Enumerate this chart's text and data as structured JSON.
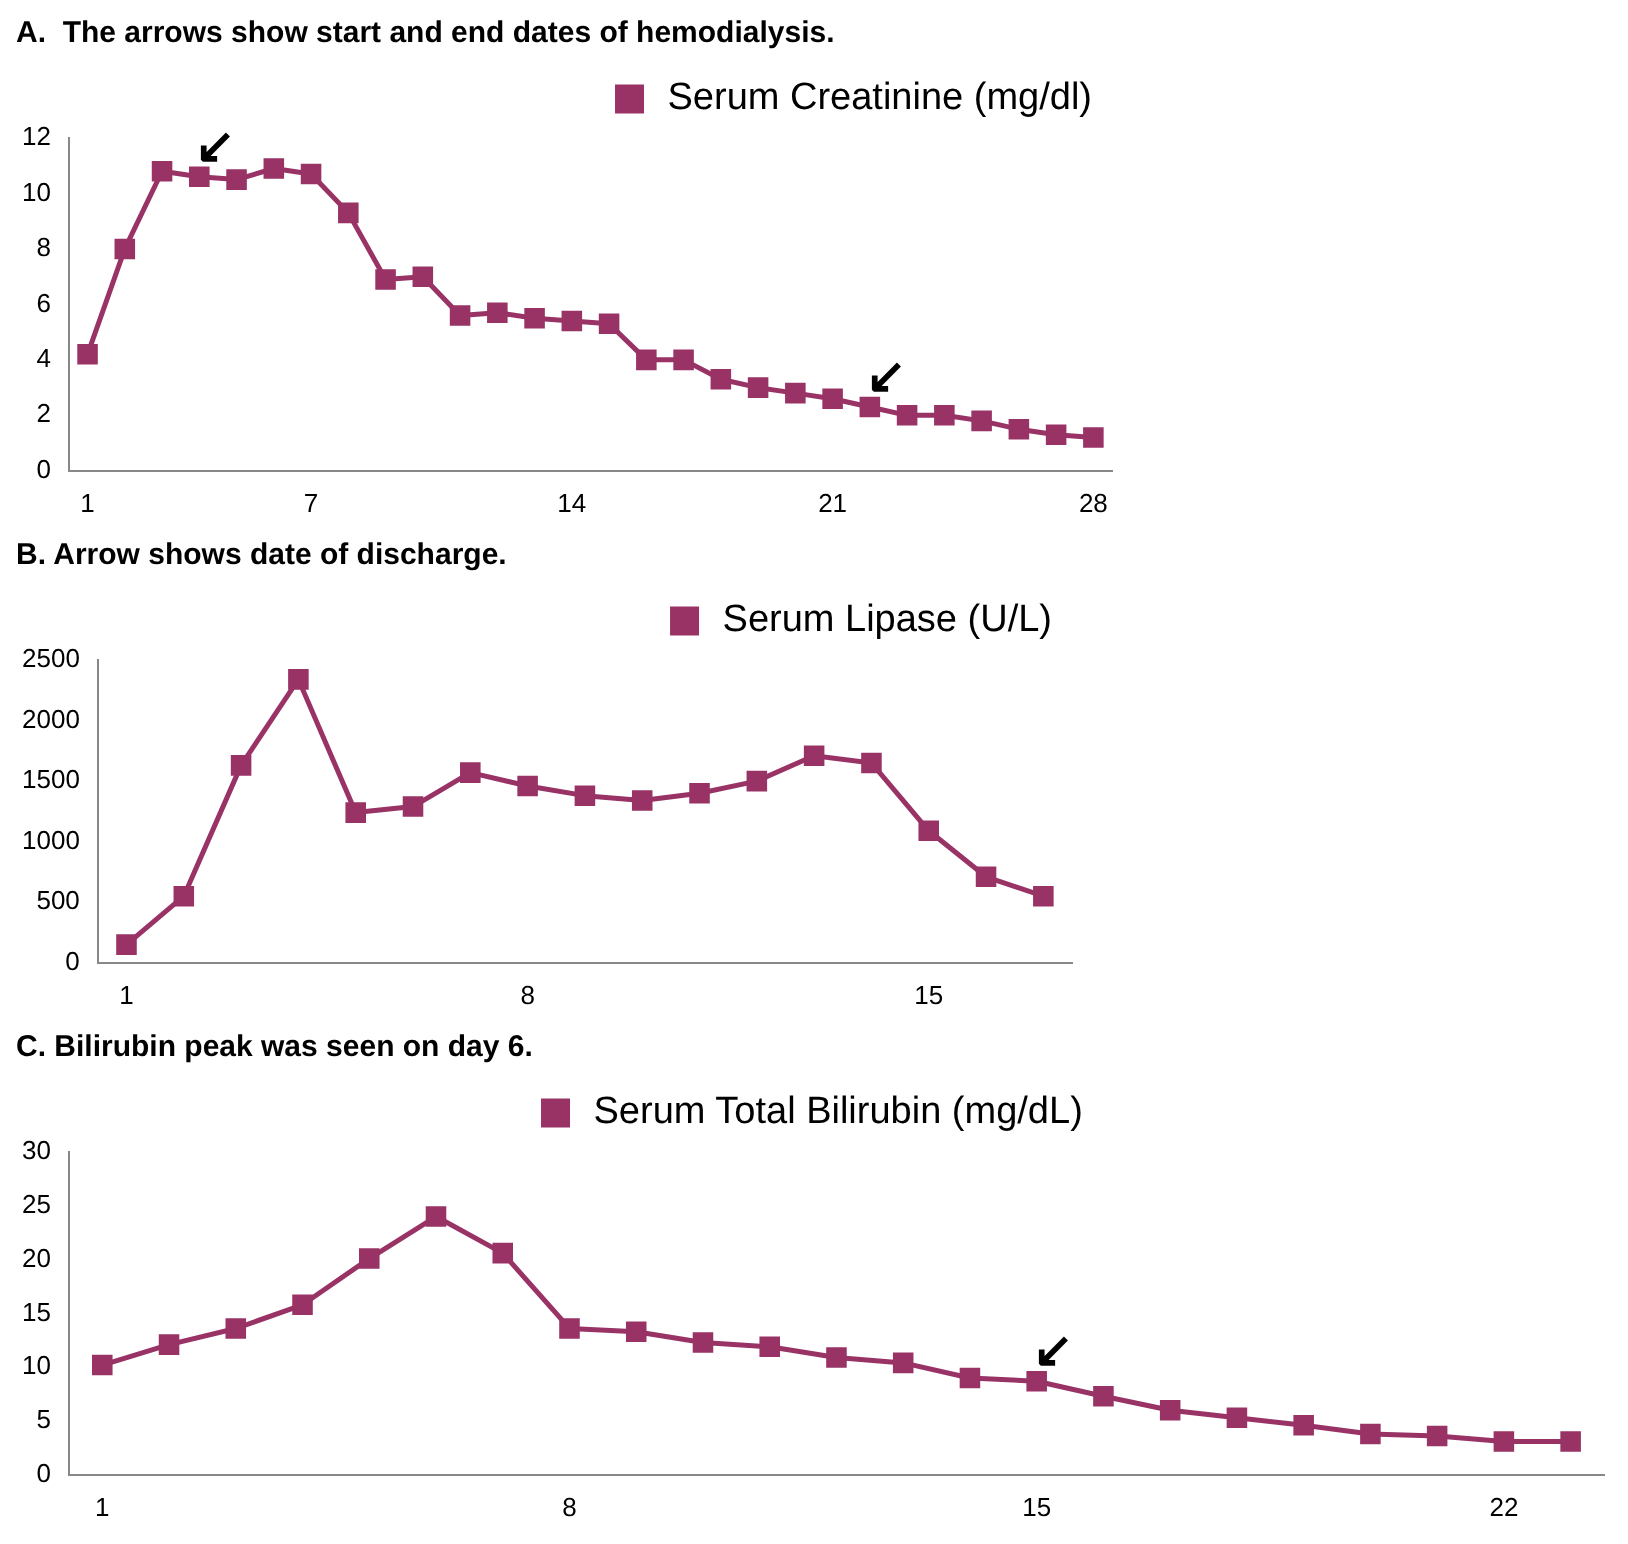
{
  "chart_data": [
    {
      "type": "line",
      "title": "A.  The arrows show start and end dates of hemodialysis.",
      "x": [
        1,
        2,
        3,
        4,
        5,
        6,
        7,
        8,
        9,
        10,
        11,
        12,
        13,
        14,
        15,
        16,
        17,
        18,
        19,
        20,
        21,
        22,
        23,
        24,
        25,
        26,
        27,
        28
      ],
      "xlim": [
        0.5,
        28.5
      ],
      "xticks": [
        1,
        7,
        14,
        21,
        28
      ],
      "ylim": [
        0,
        12
      ],
      "yticks": [
        0,
        2,
        4,
        6,
        8,
        10,
        12
      ],
      "grid": false,
      "legend": "top right",
      "marker": "square",
      "line_style": "solid",
      "series": [
        {
          "name": "Serum Creatinine (mg/dl)",
          "color": "#993366",
          "values": [
            4.2,
            8.0,
            10.8,
            10.6,
            10.5,
            10.9,
            10.7,
            9.3,
            6.9,
            7.0,
            5.6,
            5.7,
            5.5,
            5.4,
            5.3,
            4.0,
            4.0,
            3.3,
            3.0,
            2.8,
            2.6,
            2.3,
            2.0,
            2.0,
            1.8,
            1.5,
            1.3,
            1.2
          ]
        }
      ],
      "annotations": [
        {
          "text": "↙",
          "x": 4,
          "y": 10.6
        },
        {
          "text": "↙",
          "x": 22,
          "y": 2.3
        }
      ]
    },
    {
      "type": "line",
      "title": "B. Arrow shows date of discharge.",
      "x": [
        1,
        2,
        3,
        4,
        5,
        6,
        7,
        8,
        9,
        10,
        11,
        12,
        13,
        14,
        15,
        16,
        17
      ],
      "xlim": [
        0.5,
        17.5
      ],
      "xticks": [
        1,
        8,
        15
      ],
      "ylim": [
        0,
        2500
      ],
      "yticks": [
        0,
        500,
        1000,
        1500,
        2000,
        2500
      ],
      "grid": false,
      "legend": "top right",
      "marker": "square",
      "line_style": "solid",
      "series": [
        {
          "name": "Serum Lipase (U/L)",
          "color": "#993366",
          "values": [
            150,
            550,
            1630,
            2340,
            1240,
            1290,
            1570,
            1460,
            1380,
            1340,
            1400,
            1500,
            1710,
            1650,
            1090,
            710,
            550
          ]
        }
      ]
    },
    {
      "type": "line",
      "title": "C. Bilirubin peak was seen on day 6.",
      "x": [
        1,
        2,
        3,
        4,
        5,
        6,
        7,
        8,
        9,
        10,
        11,
        12,
        13,
        14,
        15,
        16,
        17,
        18,
        19,
        20,
        21,
        22,
        23
      ],
      "xlim": [
        0.5,
        23.5
      ],
      "xticks": [
        1,
        8,
        15,
        22
      ],
      "ylim": [
        0,
        30
      ],
      "yticks": [
        0,
        5,
        10,
        15,
        20,
        25,
        30
      ],
      "grid": false,
      "legend": "top",
      "marker": "square",
      "line_style": "solid",
      "series": [
        {
          "name": "Serum Total Bilirubin (mg/dL)",
          "color": "#993366",
          "values": [
            10.2,
            12.1,
            13.6,
            15.8,
            20.1,
            24.0,
            20.6,
            13.6,
            13.3,
            12.3,
            11.9,
            10.9,
            10.4,
            9.0,
            8.7,
            7.3,
            6.0,
            5.3,
            4.6,
            3.8,
            3.6,
            3.1,
            3.1
          ]
        }
      ],
      "annotations": [
        {
          "text": "↙",
          "x": 15,
          "y": 8.7
        }
      ]
    }
  ]
}
